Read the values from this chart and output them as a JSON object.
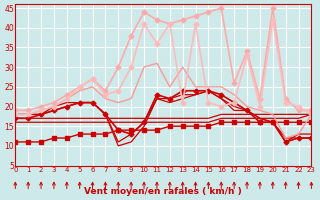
{
  "xlabel": "Vent moyen/en rafales ( km/h )",
  "xlim": [
    0,
    23
  ],
  "ylim": [
    5,
    46
  ],
  "yticks": [
    5,
    10,
    15,
    20,
    25,
    30,
    35,
    40,
    45
  ],
  "xticks": [
    0,
    1,
    2,
    3,
    4,
    5,
    6,
    7,
    8,
    9,
    10,
    11,
    12,
    13,
    14,
    15,
    16,
    17,
    18,
    19,
    20,
    21,
    22,
    23
  ],
  "bg_color": "#cde9e9",
  "grid_color": "#ffffff",
  "series": [
    {
      "x": [
        0,
        1,
        2,
        3,
        4,
        5,
        6,
        7,
        8,
        9,
        10,
        11,
        12,
        13,
        14,
        15,
        16,
        17,
        18,
        19,
        20,
        21,
        22,
        23
      ],
      "y": [
        11,
        11,
        11,
        12,
        12,
        13,
        13,
        13,
        14,
        14,
        14,
        14,
        15,
        15,
        15,
        15,
        16,
        16,
        16,
        16,
        16,
        16,
        16,
        16
      ],
      "color": "#cc0000",
      "lw": 1.0,
      "marker": "s",
      "ms": 2.5
    },
    {
      "x": [
        0,
        1,
        2,
        3,
        4,
        5,
        6,
        7,
        8,
        9,
        10,
        11,
        12,
        13,
        14,
        15,
        16,
        17,
        18,
        19,
        20,
        21,
        22,
        23
      ],
      "y": [
        16,
        16,
        16,
        16,
        16,
        16,
        16,
        16,
        16,
        16,
        16,
        16,
        16,
        16,
        16,
        16,
        17,
        17,
        17,
        17,
        17,
        17,
        17,
        18
      ],
      "color": "#cc0000",
      "lw": 0.9,
      "marker": null,
      "ms": 0
    },
    {
      "x": [
        0,
        1,
        2,
        3,
        4,
        5,
        6,
        7,
        8,
        9,
        10,
        11,
        12,
        13,
        14,
        15,
        16,
        17,
        18,
        19,
        20,
        21,
        22,
        23
      ],
      "y": [
        17,
        17,
        17,
        17,
        17,
        17,
        17,
        17,
        17,
        17,
        17,
        17,
        17,
        17,
        17,
        17,
        18,
        18,
        18,
        18,
        18,
        18,
        18,
        18
      ],
      "color": "#cc0000",
      "lw": 0.9,
      "marker": null,
      "ms": 0
    },
    {
      "x": [
        0,
        1,
        2,
        3,
        4,
        5,
        6,
        7,
        8,
        9,
        10,
        11,
        12,
        13,
        14,
        15,
        16,
        17,
        18,
        19,
        20,
        21,
        22,
        23
      ],
      "y": [
        17,
        17,
        18,
        19,
        20,
        21,
        21,
        18,
        14,
        13,
        16,
        23,
        22,
        24,
        24,
        24,
        23,
        21,
        19,
        16,
        16,
        11,
        12,
        12
      ],
      "color": "#cc0000",
      "lw": 1.2,
      "marker": "D",
      "ms": 2.5
    },
    {
      "x": [
        0,
        1,
        2,
        3,
        4,
        5,
        6,
        7,
        8,
        9,
        10,
        11,
        12,
        13,
        14,
        15,
        16,
        17,
        18,
        19,
        20,
        21,
        22,
        23
      ],
      "y": [
        18,
        18,
        18,
        19,
        20,
        21,
        21,
        18,
        11,
        13,
        16,
        22,
        22,
        23,
        23,
        24,
        22,
        20,
        19,
        17,
        16,
        12,
        12,
        12
      ],
      "color": "#cc0000",
      "lw": 0.9,
      "marker": null,
      "ms": 0
    },
    {
      "x": [
        0,
        1,
        2,
        3,
        4,
        5,
        6,
        7,
        8,
        9,
        10,
        11,
        12,
        13,
        14,
        15,
        16,
        17,
        18,
        19,
        20,
        21,
        22,
        23
      ],
      "y": [
        18,
        18,
        18,
        20,
        21,
        21,
        21,
        18,
        10,
        11,
        15,
        22,
        21,
        22,
        23,
        24,
        22,
        19,
        19,
        17,
        16,
        11,
        13,
        13
      ],
      "color": "#cc0000",
      "lw": 0.9,
      "marker": null,
      "ms": 0
    },
    {
      "x": [
        0,
        1,
        2,
        3,
        4,
        5,
        6,
        7,
        8,
        9,
        10,
        11,
        12,
        13,
        14,
        15,
        16,
        17,
        18,
        19,
        20,
        21,
        22,
        23
      ],
      "y": [
        18,
        18,
        19,
        20,
        22,
        24,
        25,
        22,
        21,
        22,
        30,
        31,
        25,
        30,
        25,
        25,
        25,
        23,
        20,
        19,
        18,
        12,
        13,
        18
      ],
      "color": "#ff9999",
      "lw": 1.0,
      "marker": null,
      "ms": 0
    },
    {
      "x": [
        0,
        1,
        2,
        3,
        4,
        5,
        6,
        7,
        8,
        9,
        10,
        11,
        12,
        13,
        14,
        15,
        16,
        17,
        18,
        19,
        20,
        21,
        22,
        23
      ],
      "y": [
        19,
        19,
        20,
        21,
        23,
        25,
        27,
        24,
        30,
        38,
        44,
        42,
        41,
        42,
        43,
        44,
        45,
        26,
        34,
        22,
        45,
        22,
        19,
        19
      ],
      "color": "#ffaaaa",
      "lw": 1.2,
      "marker": "D",
      "ms": 2.5
    },
    {
      "x": [
        0,
        1,
        2,
        3,
        4,
        5,
        6,
        7,
        8,
        9,
        10,
        11,
        12,
        13,
        14,
        15,
        16,
        17,
        18,
        19,
        20,
        21,
        22,
        23
      ],
      "y": [
        18,
        18,
        19,
        20,
        22,
        25,
        27,
        23,
        24,
        30,
        41,
        36,
        41,
        21,
        41,
        21,
        20,
        21,
        33,
        20,
        42,
        21,
        20,
        18
      ],
      "color": "#ffbbbb",
      "lw": 1.2,
      "marker": "D",
      "ms": 2.5
    }
  ],
  "arrow_color": "#cc0000",
  "tick_label_color": "#cc0000",
  "axis_label_color": "#cc0000"
}
